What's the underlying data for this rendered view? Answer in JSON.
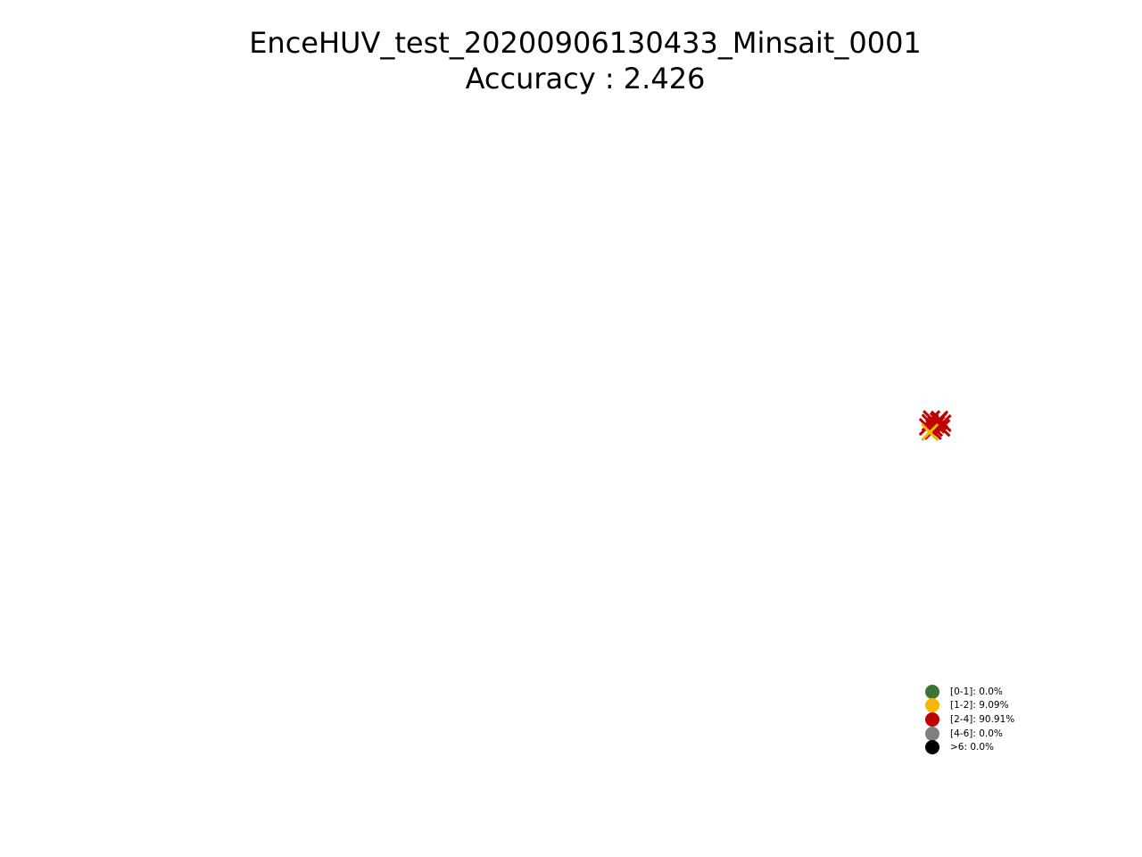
{
  "chart_data": {
    "type": "scatter",
    "title": "EnceHUV_test_20200906130433_Minsait_0001",
    "subtitle": "Accuracy : 2.426",
    "axes_visible": false,
    "marker": "x",
    "points": [
      {
        "x": 0.2,
        "y": 0.22,
        "category": "[2-4]"
      },
      {
        "x": -0.18,
        "y": 0.15,
        "category": "[2-4]"
      },
      {
        "x": 0.35,
        "y": -0.1,
        "category": "[2-4]"
      },
      {
        "x": -0.05,
        "y": -0.25,
        "category": "[2-4]"
      },
      {
        "x": 0.1,
        "y": 0.05,
        "category": "[2-4]"
      },
      {
        "x": -0.3,
        "y": -0.05,
        "category": "[2-4]"
      },
      {
        "x": 0.25,
        "y": 0.3,
        "category": "[2-4]"
      },
      {
        "x": -0.12,
        "y": 0.32,
        "category": "[2-4]"
      },
      {
        "x": 0.4,
        "y": 0.12,
        "category": "[2-4]"
      },
      {
        "x": 0.0,
        "y": -0.1,
        "category": "[2-4]"
      },
      {
        "x": -0.2,
        "y": -0.3,
        "category": "[1-2]"
      }
    ],
    "legend": {
      "placement": "lower-right",
      "entries": [
        {
          "label": "[0-1]: 0.0%",
          "color": "#3d7239"
        },
        {
          "label": "[1-2]: 9.09%",
          "color": "#f5b800"
        },
        {
          "label": "[2-4]: 90.91%",
          "color": "#c00000"
        },
        {
          "label": "[4-6]: 0.0%",
          "color": "#7f7f7f"
        },
        {
          "label": ">6: 0.0%",
          "color": "#000000"
        }
      ]
    },
    "category_colors": {
      "[0-1]": "#3d7239",
      "[1-2]": "#f5b800",
      "[2-4]": "#c00000",
      "[4-6]": "#7f7f7f",
      ">6": "#000000"
    }
  }
}
